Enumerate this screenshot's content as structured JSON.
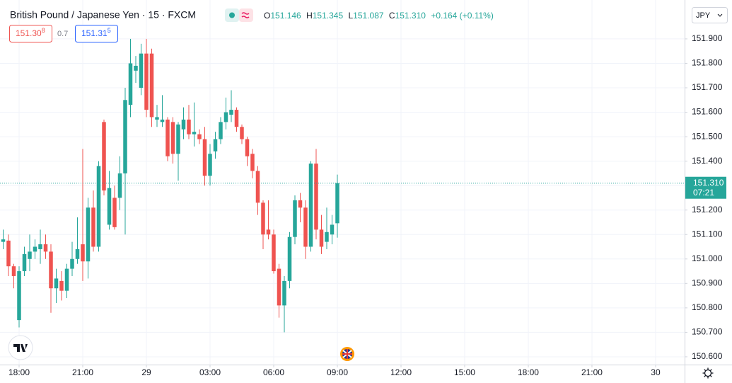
{
  "header": {
    "title": "British Pound / Japanese Yen · 15 · FXCM",
    "o_label": "O",
    "o_value": "151.146",
    "h_label": "H",
    "h_value": "151.345",
    "l_label": "L",
    "l_value": "151.087",
    "c_label": "C",
    "c_value": "151.310",
    "change": "+0.164 (+0.11%)",
    "sell": "151.30",
    "sell_pip": "8",
    "spread": "0.7",
    "buy": "151.31",
    "buy_pip": "5",
    "currency": "JPY"
  },
  "chart_data": {
    "type": "candlestick",
    "up_color": "#26a69a",
    "down_color": "#ef5350",
    "grid": true,
    "x": [
      -3,
      -2,
      -1,
      0,
      1,
      2,
      3,
      4,
      5,
      6,
      7,
      8,
      9,
      10,
      11,
      12,
      13,
      14,
      15,
      16,
      17,
      18,
      19,
      20,
      21,
      22,
      23,
      24,
      25,
      26,
      27,
      28,
      29,
      30,
      31,
      32,
      33,
      34,
      35,
      36,
      37,
      38,
      39,
      40,
      41,
      42,
      43,
      44,
      45,
      46,
      47,
      48,
      49,
      50,
      51,
      52,
      53,
      54,
      55,
      56,
      57,
      58,
      59,
      60
    ],
    "open": [
      151.07,
      151.075,
      150.97,
      150.75,
      150.95,
      151.0,
      151.03,
      151.04,
      151.06,
      151.03,
      150.88,
      150.91,
      150.87,
      150.96,
      151.0,
      151.06,
      150.99,
      151.21,
      151.05,
      151.56,
      151.14,
      151.25,
      151.25,
      151.35,
      151.63,
      151.77,
      151.7,
      151.84,
      151.84,
      151.57,
      151.56,
      151.57,
      151.56,
      151.43,
      151.53,
      151.57,
      151.51,
      151.51,
      151.49,
      151.34,
      151.44,
      151.49,
      151.56,
      151.59,
      151.61,
      151.54,
      151.49,
      151.43,
      151.36,
      151.23,
      151.12,
      151.1,
      150.96,
      150.81,
      150.91,
      151.09,
      151.24,
      151.21,
      151.05,
      151.39,
      151.12,
      151.07,
      151.1,
      151.146
    ],
    "high": [
      151.12,
      151.1,
      150.98,
      150.97,
      151.05,
      151.1,
      151.08,
      151.12,
      151.1,
      151.06,
      150.96,
      150.95,
      150.98,
      151.07,
      151.17,
      151.45,
      151.25,
      151.28,
      151.4,
      151.57,
      151.36,
      151.3,
      151.42,
      151.7,
      151.9,
      151.83,
      151.88,
      151.9,
      151.86,
      151.63,
      151.67,
      151.58,
      151.58,
      151.56,
      151.62,
      151.63,
      151.64,
      151.53,
      151.54,
      151.47,
      151.52,
      151.58,
      151.66,
      151.69,
      151.62,
      151.55,
      151.5,
      151.45,
      151.38,
      151.24,
      151.24,
      151.12,
      150.98,
      150.93,
      151.11,
      151.26,
      151.27,
      151.24,
      151.4,
      151.45,
      151.18,
      151.21,
      151.18,
      151.345
    ],
    "low": [
      151.04,
      150.93,
      150.88,
      150.72,
      150.93,
      150.95,
      151.0,
      150.98,
      151.0,
      150.78,
      150.82,
      150.83,
      150.84,
      150.93,
      150.98,
      150.91,
      150.92,
      151.03,
      151.03,
      151.26,
      151.12,
      151.12,
      151.2,
      151.1,
      151.58,
      151.72,
      151.67,
      151.58,
      151.54,
      151.54,
      151.54,
      151.4,
      151.39,
      151.32,
      151.49,
      151.49,
      151.46,
      151.47,
      151.3,
      151.3,
      151.41,
      151.47,
      151.53,
      151.56,
      151.52,
      151.47,
      151.38,
      151.33,
      151.18,
      151.04,
      151.08,
      150.94,
      150.76,
      150.7,
      150.88,
      151.06,
      151.15,
      151.0,
      151.03,
      151.08,
      151.02,
      151.04,
      151.06,
      151.087
    ],
    "close": [
      151.08,
      150.97,
      150.93,
      150.95,
      151.02,
      151.03,
      151.05,
      151.06,
      151.03,
      150.88,
      150.92,
      150.87,
      150.96,
      151.0,
      151.04,
      150.99,
      151.21,
      151.05,
      151.38,
      151.28,
      151.29,
      151.13,
      151.35,
      151.65,
      151.8,
      151.79,
      151.84,
      151.61,
      151.58,
      151.58,
      151.57,
      151.42,
      151.43,
      151.55,
      151.57,
      151.51,
      151.52,
      151.49,
      151.34,
      151.43,
      151.49,
      151.56,
      151.6,
      151.61,
      151.54,
      151.49,
      151.42,
      151.36,
      151.23,
      151.1,
      151.1,
      150.95,
      150.81,
      150.91,
      151.09,
      151.24,
      151.21,
      151.05,
      151.39,
      151.12,
      151.05,
      151.11,
      151.14,
      151.31
    ],
    "xlim": [
      -3.6,
      125.47
    ],
    "xticks": [
      {
        "value": 0,
        "label": "18:00"
      },
      {
        "value": 12,
        "label": "21:00"
      },
      {
        "value": 24,
        "label": "29"
      },
      {
        "value": 36,
        "label": "03:00"
      },
      {
        "value": 48,
        "label": "06:00"
      },
      {
        "value": 60,
        "label": "09:00"
      },
      {
        "value": 72,
        "label": "12:00"
      },
      {
        "value": 84,
        "label": "15:00"
      },
      {
        "value": 96,
        "label": "18:00"
      },
      {
        "value": 108,
        "label": "21:00"
      },
      {
        "value": 120,
        "label": "30"
      }
    ],
    "ylim": [
      150.568,
      152.059
    ],
    "yticks": [
      {
        "value": 150.6,
        "label": "150.600"
      },
      {
        "value": 150.7,
        "label": "150.700"
      },
      {
        "value": 150.8,
        "label": "150.800"
      },
      {
        "value": 150.9,
        "label": "150.900"
      },
      {
        "value": 151.0,
        "label": "151.000"
      },
      {
        "value": 151.1,
        "label": "151.100"
      },
      {
        "value": 151.2,
        "label": "151.200"
      },
      {
        "value": 151.3,
        "label": "151.300"
      },
      {
        "value": 151.4,
        "label": "151.400"
      },
      {
        "value": 151.5,
        "label": "151.500"
      },
      {
        "value": 151.6,
        "label": "151.600"
      },
      {
        "value": 151.7,
        "label": "151.700"
      },
      {
        "value": 151.8,
        "label": "151.800"
      },
      {
        "value": 151.9,
        "label": "151.900"
      }
    ],
    "last_price": {
      "value": 151.31,
      "label": "151.310"
    },
    "countdown": "07:21"
  }
}
